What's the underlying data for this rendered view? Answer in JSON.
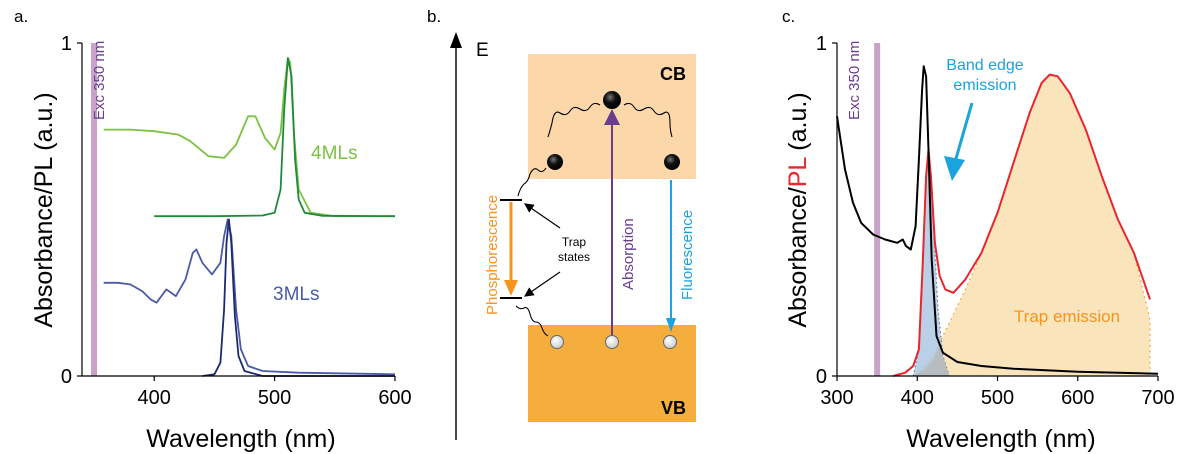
{
  "panels": {
    "a": "a.",
    "b": "b.",
    "c": "c."
  },
  "colors": {
    "exc_band": "#c9a1c9",
    "ml4_light": "#7cc242",
    "ml4_dark": "#1f8a3c",
    "ml3_light": "#4a5aa8",
    "ml3_dark": "#1c2a6e",
    "cb_fill": "#fbd7aa",
    "vb_fill": "#f5ae3e",
    "absorption": "#6a3d8f",
    "phosphorescence": "#f7941d",
    "fluorescence": "#1aa3dc",
    "pl_red": "#e8262b",
    "trap_fill": "#f8dfb0",
    "band_edge_fill": "#a9c4e0",
    "gray_fill": "#b5b5b5"
  },
  "chart_data": [
    {
      "panel": "a",
      "type": "line",
      "xlabel": "Wavelength (nm)",
      "ylabel": "Absorbance/PL (a.u.)",
      "xlim": [
        340,
        600
      ],
      "ylim": [
        0,
        1
      ],
      "xticks": [
        400,
        500,
        600
      ],
      "yticks": [
        0,
        1
      ],
      "annotations": {
        "excitation": "Exc 350 nm",
        "label_4ml": "4MLs",
        "label_3ml": "3MLs"
      },
      "excitation_nm": 350,
      "series": [
        {
          "id": "abs4",
          "color": "#7cc242",
          "points": [
            [
              358,
              0.74
            ],
            [
              380,
              0.74
            ],
            [
              400,
              0.735
            ],
            [
              420,
              0.725
            ],
            [
              430,
              0.705
            ],
            [
              445,
              0.66
            ],
            [
              458,
              0.655
            ],
            [
              468,
              0.695
            ],
            [
              478,
              0.78
            ],
            [
              484,
              0.78
            ],
            [
              492,
              0.715
            ],
            [
              500,
              0.68
            ],
            [
              505,
              0.73
            ],
            [
              508,
              0.86
            ],
            [
              511,
              0.955
            ],
            [
              513,
              0.94
            ],
            [
              516,
              0.73
            ],
            [
              520,
              0.56
            ],
            [
              530,
              0.49
            ],
            [
              550,
              0.48
            ],
            [
              600,
              0.48
            ]
          ]
        },
        {
          "id": "pl4",
          "color": "#1f8a3c",
          "points": [
            [
              400,
              0.48
            ],
            [
              450,
              0.48
            ],
            [
              490,
              0.482
            ],
            [
              500,
              0.49
            ],
            [
              505,
              0.56
            ],
            [
              508,
              0.8
            ],
            [
              511,
              0.955
            ],
            [
              514,
              0.9
            ],
            [
              517,
              0.65
            ],
            [
              520,
              0.53
            ],
            [
              525,
              0.49
            ],
            [
              540,
              0.481
            ],
            [
              600,
              0.48
            ]
          ]
        },
        {
          "id": "abs3",
          "color": "#4a5aa8",
          "points": [
            [
              358,
              0.28
            ],
            [
              370,
              0.28
            ],
            [
              380,
              0.275
            ],
            [
              390,
              0.255
            ],
            [
              397,
              0.23
            ],
            [
              402,
              0.22
            ],
            [
              410,
              0.26
            ],
            [
              418,
              0.24
            ],
            [
              426,
              0.29
            ],
            [
              432,
              0.37
            ],
            [
              435,
              0.38
            ],
            [
              440,
              0.34
            ],
            [
              448,
              0.305
            ],
            [
              455,
              0.34
            ],
            [
              458,
              0.42
            ],
            [
              461,
              0.47
            ],
            [
              464,
              0.42
            ],
            [
              468,
              0.2
            ],
            [
              472,
              0.08
            ],
            [
              478,
              0.03
            ],
            [
              490,
              0.015
            ],
            [
              520,
              0.01
            ],
            [
              600,
              0.005
            ]
          ]
        },
        {
          "id": "pl3",
          "color": "#1c2a6e",
          "points": [
            [
              440,
              0.0
            ],
            [
              450,
              0.005
            ],
            [
              455,
              0.04
            ],
            [
              458,
              0.2
            ],
            [
              460,
              0.4
            ],
            [
              462,
              0.47
            ],
            [
              464,
              0.4
            ],
            [
              467,
              0.18
            ],
            [
              470,
              0.06
            ],
            [
              475,
              0.015
            ],
            [
              490,
              0.0
            ],
            [
              600,
              0.0
            ]
          ]
        }
      ]
    },
    {
      "panel": "c",
      "type": "line",
      "xlabel": "Wavelength (nm)",
      "ylabel_parts": [
        "Absorbance/",
        "PL",
        " (a.u.)"
      ],
      "xlim": [
        300,
        700
      ],
      "ylim": [
        0,
        1
      ],
      "xticks": [
        300,
        400,
        500,
        600,
        700
      ],
      "yticks": [
        0,
        1
      ],
      "annotations": {
        "excitation": "Exc 350 nm",
        "band_edge": [
          "Band edge",
          "emission"
        ],
        "trap": "Trap emission"
      },
      "excitation_nm": 350,
      "series": [
        {
          "id": "absorbance",
          "color": "#000000",
          "points": [
            [
              300,
              0.78
            ],
            [
              310,
              0.62
            ],
            [
              320,
              0.52
            ],
            [
              330,
              0.46
            ],
            [
              345,
              0.425
            ],
            [
              360,
              0.41
            ],
            [
              375,
              0.4
            ],
            [
              382,
              0.41
            ],
            [
              386,
              0.39
            ],
            [
              392,
              0.38
            ],
            [
              398,
              0.45
            ],
            [
              402,
              0.65
            ],
            [
              406,
              0.86
            ],
            [
              408,
              0.93
            ],
            [
              411,
              0.9
            ],
            [
              414,
              0.68
            ],
            [
              418,
              0.35
            ],
            [
              424,
              0.12
            ],
            [
              432,
              0.07
            ],
            [
              450,
              0.042
            ],
            [
              480,
              0.03
            ],
            [
              520,
              0.022
            ],
            [
              600,
              0.013
            ],
            [
              700,
              0.007
            ]
          ]
        },
        {
          "id": "pl",
          "color": "#e8262b",
          "points": [
            [
              370,
              0.0
            ],
            [
              385,
              0.01
            ],
            [
              395,
              0.03
            ],
            [
              402,
              0.08
            ],
            [
              407,
              0.35
            ],
            [
              411,
              0.6
            ],
            [
              414,
              0.68
            ],
            [
              417,
              0.6
            ],
            [
              422,
              0.4
            ],
            [
              428,
              0.3
            ],
            [
              435,
              0.26
            ],
            [
              445,
              0.25
            ],
            [
              460,
              0.29
            ],
            [
              480,
              0.37
            ],
            [
              500,
              0.49
            ],
            [
              520,
              0.64
            ],
            [
              540,
              0.79
            ],
            [
              555,
              0.88
            ],
            [
              565,
              0.905
            ],
            [
              575,
              0.9
            ],
            [
              590,
              0.85
            ],
            [
              610,
              0.74
            ],
            [
              630,
              0.6
            ],
            [
              650,
              0.47
            ],
            [
              670,
              0.37
            ],
            [
              690,
              0.23
            ]
          ]
        },
        {
          "id": "trap_fit",
          "color": "#f8dfb0",
          "points": [
            [
              400,
              0.0
            ],
            [
              420,
              0.06
            ],
            [
              440,
              0.16
            ],
            [
              460,
              0.26
            ],
            [
              480,
              0.37
            ],
            [
              500,
              0.49
            ],
            [
              520,
              0.64
            ],
            [
              540,
              0.79
            ],
            [
              555,
              0.88
            ],
            [
              565,
              0.905
            ],
            [
              575,
              0.9
            ],
            [
              590,
              0.85
            ],
            [
              610,
              0.74
            ],
            [
              630,
              0.6
            ],
            [
              650,
              0.47
            ],
            [
              670,
              0.37
            ],
            [
              690,
              0.17
            ]
          ]
        },
        {
          "id": "band_edge_fit",
          "color": "#a9c4e0",
          "points": [
            [
              395,
              0.0
            ],
            [
              402,
              0.08
            ],
            [
              407,
              0.35
            ],
            [
              411,
              0.6
            ],
            [
              414,
              0.68
            ],
            [
              417,
              0.6
            ],
            [
              421,
              0.42
            ],
            [
              426,
              0.2
            ],
            [
              432,
              0.06
            ],
            [
              440,
              0.0
            ]
          ]
        }
      ]
    }
  ],
  "diagram": {
    "energy_label": "E",
    "cb_label": "CB",
    "vb_label": "VB",
    "phosphorescence": "Phosphorescence",
    "absorption": "Absorption",
    "fluorescence": "Fluorescence",
    "trap_states": [
      "Trap",
      "states"
    ]
  }
}
